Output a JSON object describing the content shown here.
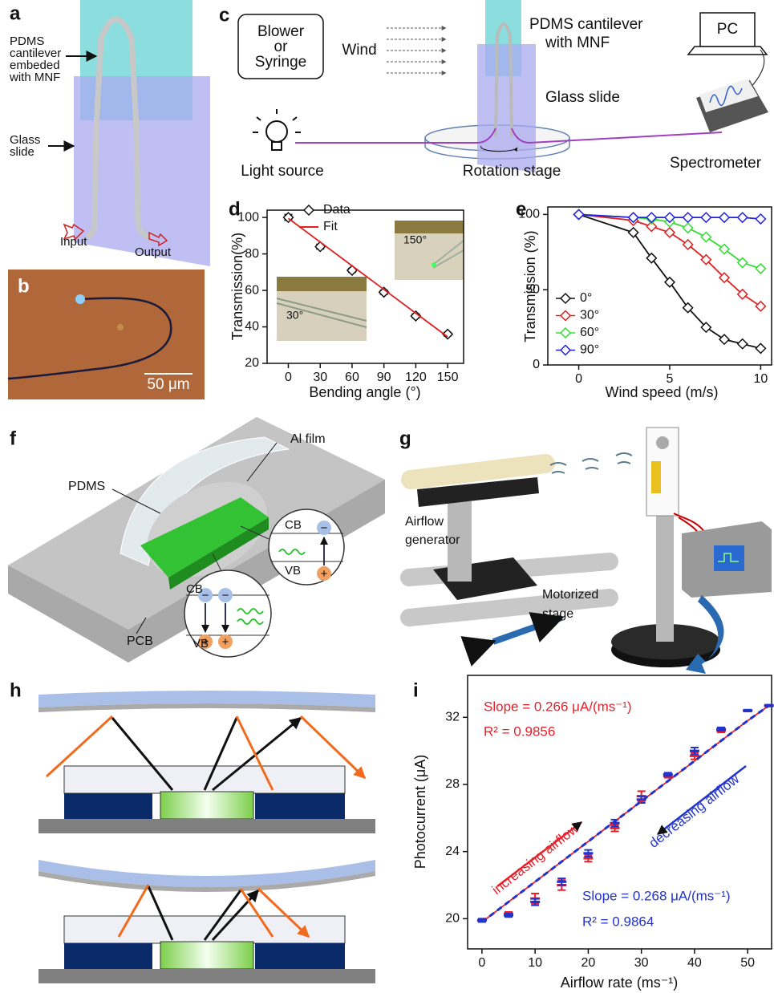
{
  "panels": {
    "a": {
      "label": "a",
      "callouts": [
        [
          "PDMS",
          "cantilever",
          "embeded",
          "with MNF"
        ],
        [
          "Glass",
          "slide"
        ]
      ],
      "ports": [
        "Input",
        "Output"
      ]
    },
    "b": {
      "label": "b",
      "scale_bar": "50 μm"
    },
    "c": {
      "label": "c",
      "source_box": [
        "Blower",
        "or",
        "Syringe"
      ],
      "wind": "Wind",
      "cantilever": [
        "PDMS cantilever",
        "with MNF"
      ],
      "slide": "Glass slide",
      "pc": "PC",
      "light": "Light source",
      "stage": "Rotation  stage",
      "spectrometer": "Spectrometer"
    },
    "f": {
      "label": "f",
      "parts": [
        "Al film",
        "PDMS",
        "PCB"
      ],
      "bands": [
        "CB",
        "VB",
        "CB",
        "VB"
      ],
      "charges": [
        "−",
        "+",
        "−",
        "−",
        "+",
        "+"
      ]
    },
    "g": {
      "label": "g",
      "airflow": [
        "Airflow",
        "generator"
      ],
      "stage": [
        "Motorized",
        "stage"
      ]
    },
    "h": {
      "label": "h"
    }
  },
  "chart_data": [
    {
      "type": "scatter",
      "panel": "d",
      "x_label": "Bending angle (°)",
      "y_label": "Transmission(%)",
      "x": [
        0,
        30,
        60,
        90,
        120,
        150
      ],
      "series": [
        {
          "name": "Data",
          "color": "#111111",
          "marker": "diamond",
          "values": [
            100,
            84,
            71,
            59,
            46,
            36
          ],
          "errors": [
            1.5,
            1.2,
            1.0,
            1.0,
            1.0,
            0.8
          ]
        },
        {
          "name": "Fit",
          "color": "#e02020",
          "line": "solid",
          "values": [
            99.5,
            86.5,
            73.5,
            60.5,
            47.5,
            34.5
          ]
        }
      ],
      "xlim": [
        -20,
        165
      ],
      "xticks": [
        0,
        30,
        60,
        90,
        120,
        150
      ],
      "ylim": [
        20,
        104
      ],
      "yticks": [
        20,
        40,
        60,
        80,
        100
      ],
      "legend": "upper center",
      "annotations": [
        "30°",
        "150°"
      ]
    },
    {
      "type": "line",
      "panel": "e",
      "x_label": "Wind speed (m/s)",
      "y_label": "Transmission (%)",
      "x": [
        0,
        3,
        4,
        5,
        6,
        7,
        8,
        9,
        10
      ],
      "series": [
        {
          "name": "0°",
          "color": "#111111",
          "marker": "diamond",
          "line": "solid",
          "values": [
            100,
            88,
            71,
            55,
            38,
            25,
            17,
            14,
            11
          ]
        },
        {
          "name": "30°",
          "color": "#e02020",
          "marker": "diamond",
          "line": "solid",
          "values": [
            100,
            96,
            92,
            88,
            80,
            70,
            58,
            47,
            39
          ]
        },
        {
          "name": "60°",
          "color": "#33dd33",
          "marker": "diamond",
          "line": "solid",
          "values": [
            100,
            98,
            97,
            95,
            91,
            85,
            77,
            68,
            64
          ]
        },
        {
          "name": "90°",
          "color": "#2020e0",
          "marker": "diamond",
          "line": "solid",
          "values": [
            100,
            98,
            98,
            98,
            98,
            98,
            98,
            98,
            97
          ]
        }
      ],
      "xlim": [
        -1.7,
        10.6
      ],
      "xticks": [
        0,
        5,
        10
      ],
      "ylim": [
        0,
        105
      ],
      "yticks": [
        0,
        50,
        100
      ],
      "legend": "center left"
    },
    {
      "type": "scatter",
      "panel": "i",
      "x_label": "Airflow rate (ms⁻¹)",
      "y_label": "Photocurrent (μA)",
      "x": [
        0,
        5,
        10,
        15,
        20,
        25,
        30,
        35,
        40,
        45,
        50,
        54
      ],
      "series": [
        {
          "color": "#e8202a",
          "marker": "cap",
          "values": [
            19.9,
            20.3,
            21.2,
            22.0,
            23.6,
            25.4,
            27.3,
            28.5,
            29.7,
            31.2,
            32.4,
            32.7
          ],
          "errors": [
            0.1,
            0.1,
            0.3,
            0.3,
            0.2,
            0.2,
            0.3,
            0.1,
            0.2,
            0.1,
            0.05,
            0.05
          ]
        },
        {
          "color": "#2233cc",
          "marker": "cap",
          "values": [
            19.9,
            20.2,
            21.0,
            22.2,
            23.9,
            25.7,
            27.1,
            28.6,
            30.0,
            31.3,
            32.4,
            32.7
          ],
          "errors": [
            0.1,
            0.1,
            0.2,
            0.2,
            0.2,
            0.2,
            0.2,
            0.1,
            0.2,
            0.1,
            0.05,
            0.05
          ]
        },
        {
          "color": "#e8202a",
          "line": "solid",
          "values": [
            19.8,
            21.0,
            22.2,
            23.4,
            24.6,
            25.8,
            27.0,
            28.2,
            29.4,
            30.6,
            31.8,
            32.7
          ]
        },
        {
          "color": "#2233cc",
          "line": "dashed",
          "values": [
            19.8,
            21.0,
            22.2,
            23.4,
            24.6,
            25.8,
            27.0,
            28.2,
            29.4,
            30.6,
            31.8,
            32.7
          ]
        }
      ],
      "xlim": [
        -2.7,
        54.5
      ],
      "xticks": [
        0,
        10,
        20,
        30,
        40,
        50
      ],
      "ylim": [
        18.2,
        34.5
      ],
      "yticks": [
        20,
        24,
        28,
        32
      ],
      "annotations": [
        "Slope = 0.266 μA/(ms⁻¹)",
        "R² = 0.9856",
        "increasing airflow",
        "decreasing airflow",
        "Slope = 0.268 μA/(ms⁻¹)",
        "R² = 0.9864"
      ]
    }
  ]
}
